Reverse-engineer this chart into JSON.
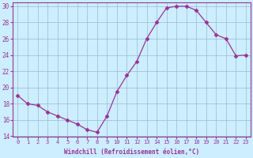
{
  "xlabel": "Windchill (Refroidissement éolien,°C)",
  "x": [
    0,
    1,
    2,
    3,
    4,
    5,
    6,
    7,
    8,
    9,
    10,
    11,
    12,
    13,
    14,
    15,
    16,
    17,
    18,
    19,
    20,
    21,
    22,
    23
  ],
  "y": [
    19.0,
    18.0,
    17.8,
    17.0,
    16.5,
    16.0,
    15.5,
    14.8,
    14.5,
    16.5,
    19.5,
    21.5,
    23.2,
    26.0,
    28.0,
    29.8,
    30.0,
    30.0,
    29.5,
    28.0,
    26.5,
    26.0,
    23.9,
    24.0
  ],
  "line_color": "#993399",
  "marker": "D",
  "marker_size": 2.5,
  "bg_color": "#cceeff",
  "grid_color": "#99bbcc",
  "ylim": [
    14,
    30.5
  ],
  "yticks": [
    14,
    16,
    18,
    20,
    22,
    24,
    26,
    28,
    30
  ],
  "xtick_labels": [
    "0",
    "1",
    "2",
    "3",
    "4",
    "5",
    "6",
    "7",
    "8",
    "9",
    "10",
    "11",
    "12",
    "13",
    "14",
    "15",
    "16",
    "17",
    "18",
    "19",
    "20",
    "21",
    "22",
    "23"
  ],
  "tick_color": "#993399",
  "label_color": "#993399",
  "tick_fontsize": 5.0,
  "xlabel_fontsize": 5.5,
  "ytick_fontsize": 5.5
}
